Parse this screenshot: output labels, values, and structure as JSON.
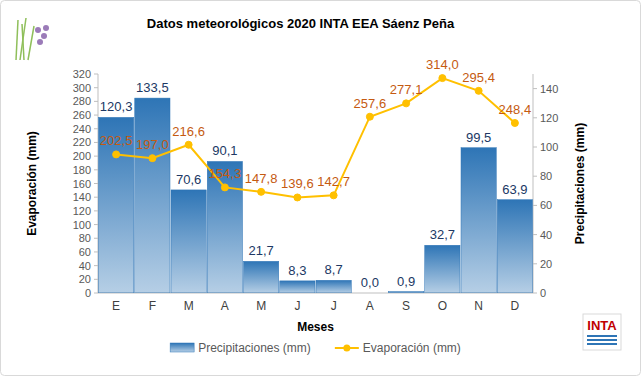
{
  "chart_data": {
    "type": "bar",
    "title": "Datos meteorológicos 2020 INTA EEA Sáenz Peña",
    "x_label": "Meses",
    "y_label": "Evaporación (mm)",
    "y2_label": "Precipitaciones (mm)",
    "categories": [
      "E",
      "F",
      "M",
      "A",
      "M",
      "J",
      "J",
      "A",
      "S",
      "O",
      "N",
      "D"
    ],
    "ylim": [
      0,
      320
    ],
    "yticks": [
      0,
      20,
      40,
      60,
      80,
      100,
      120,
      140,
      160,
      180,
      200,
      220,
      240,
      260,
      280,
      300,
      320
    ],
    "y2lim": [
      0,
      150
    ],
    "y2ticks": [
      0,
      20,
      40,
      60,
      80,
      100,
      120,
      140
    ],
    "grid": false,
    "legend": "bottom",
    "data_labels": true,
    "series": [
      {
        "name": "Precipitaciones (mm)",
        "type": "bar",
        "axis": "y2",
        "color": "#2e75b6",
        "values": [
          120.3,
          133.5,
          70.6,
          90.1,
          21.7,
          8.3,
          8.7,
          0.0,
          0.9,
          32.7,
          99.5,
          63.9
        ],
        "value_labels": [
          "120,3",
          "133,5",
          "70,6",
          "90,1",
          "21,7",
          "8,3",
          "8,7",
          "0,0",
          "0,9",
          "32,7",
          "99,5",
          "63,9"
        ]
      },
      {
        "name": "Evaporación (mm)",
        "type": "line",
        "axis": "y",
        "color": "#ffc000",
        "marker": "circle",
        "values": [
          202.5,
          197.0,
          216.6,
          154.3,
          147.8,
          139.6,
          142.7,
          257.6,
          277.1,
          314.0,
          295.4,
          248.4
        ],
        "value_labels": [
          "202,5",
          "197,0",
          "216,6",
          "154,3",
          "147,8",
          "139,6",
          "142,7",
          "257,6",
          "277,1",
          "314,0",
          "295,4",
          "248,4"
        ]
      }
    ],
    "annotations": [
      "INTA"
    ]
  }
}
